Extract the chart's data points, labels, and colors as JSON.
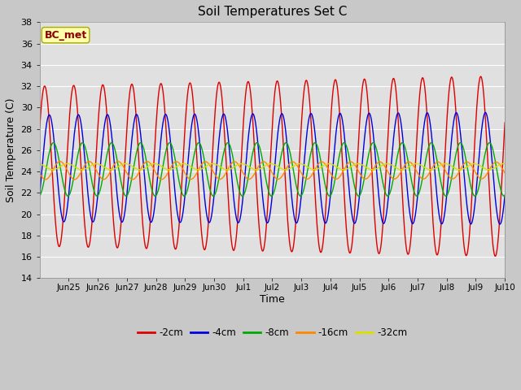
{
  "title": "Soil Temperatures Set C",
  "xlabel": "Time",
  "ylabel": "Soil Temperature (C)",
  "ylim": [
    14,
    38
  ],
  "yticks": [
    14,
    16,
    18,
    20,
    22,
    24,
    26,
    28,
    30,
    32,
    34,
    36,
    38
  ],
  "xlim_days": [
    0,
    16
  ],
  "annotation": "BC_met",
  "annotation_color": "#8B0000",
  "annotation_bg": "#FFFFAA",
  "background_color": "#C8C8C8",
  "plot_bg": "#E0E0E0",
  "grid_color": "#FFFFFF",
  "series": [
    {
      "label": "-2cm",
      "color": "#DD0000",
      "amplitude": 7.5,
      "period": 1.0,
      "mean": 24.5,
      "phase": -0.08,
      "decay": 0.0,
      "grow": 0.008
    },
    {
      "label": "-4cm",
      "color": "#0000DD",
      "amplitude": 5.0,
      "period": 1.0,
      "mean": 24.3,
      "phase": 0.08,
      "decay": 0.0,
      "grow": 0.003
    },
    {
      "label": "-8cm",
      "color": "#00AA00",
      "amplitude": 2.5,
      "period": 1.0,
      "mean": 24.2,
      "phase": 0.22,
      "decay": 0.0,
      "grow": 0.0
    },
    {
      "label": "-16cm",
      "color": "#FF8800",
      "amplitude": 0.85,
      "period": 1.0,
      "mean": 24.1,
      "phase": 0.45,
      "decay": 0.005,
      "grow": 0.0
    },
    {
      "label": "-32cm",
      "color": "#DDDD00",
      "amplitude": 0.28,
      "period": 1.0,
      "mean": 24.45,
      "phase": 0.7,
      "decay": 0.0,
      "grow": 0.0
    }
  ],
  "xtick_labels": [
    "Jun 25",
    "Jun 26",
    "Jun 27",
    "Jun 28",
    "Jun 29",
    "Jun 30",
    "Jul 1",
    "Jul 2",
    "Jul 3",
    "Jul 4",
    "Jul 5",
    "Jul 6",
    "Jul 7",
    "Jul 8",
    "Jul 9",
    "Jul 10"
  ],
  "xtick_positions": [
    1,
    2,
    3,
    4,
    5,
    6,
    7,
    8,
    9,
    10,
    11,
    12,
    13,
    14,
    15,
    16
  ],
  "figwidth": 6.4,
  "figheight": 4.8,
  "dpi": 100
}
